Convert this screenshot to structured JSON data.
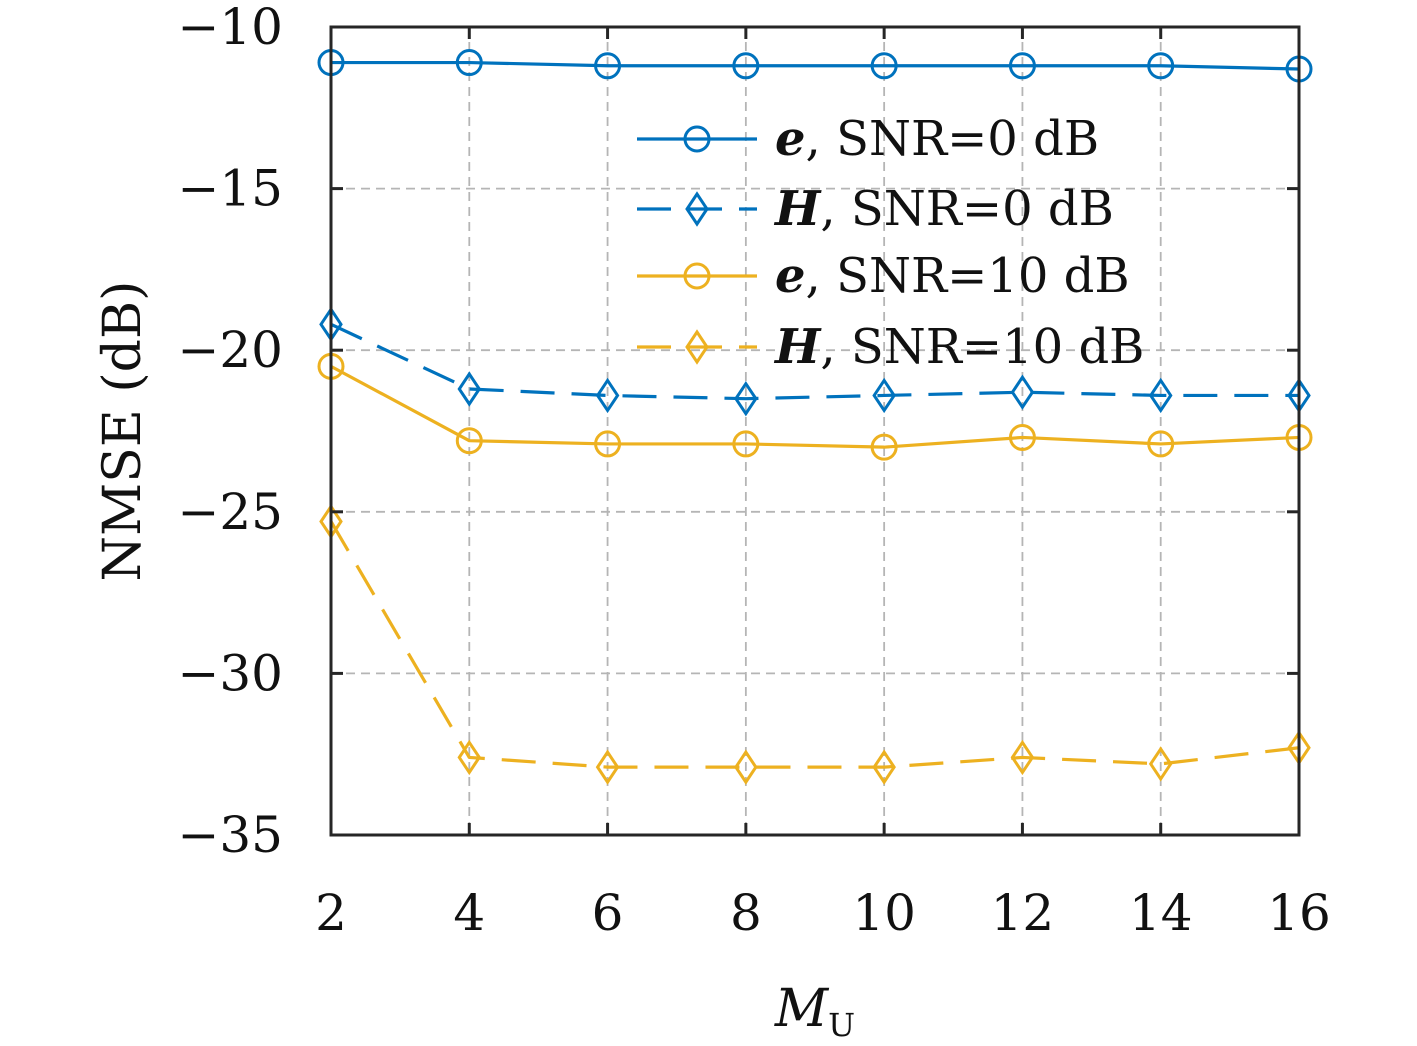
{
  "chart_data": {
    "type": "line",
    "x": [
      2,
      4,
      6,
      8,
      10,
      12,
      14,
      16
    ],
    "xticks": [
      "2",
      "4",
      "6",
      "8",
      "10",
      "12",
      "14",
      "16"
    ],
    "yticks": [
      "−10",
      "−15",
      "−20",
      "−25",
      "−30",
      "−35"
    ],
    "xlim": [
      2,
      16
    ],
    "ylim": [
      -35,
      -10
    ],
    "xlabel_main": "M",
    "xlabel_sub": "U",
    "ylabel": "NMSE (dB)",
    "grid": true,
    "legend_position": "top-right",
    "series": [
      {
        "name_symbol": "e",
        "name_rest": ", SNR=0 dB",
        "color": "#0072BD",
        "dash": "solid",
        "marker": "circle",
        "values": [
          -11.1,
          -11.1,
          -11.2,
          -11.2,
          -11.2,
          -11.2,
          -11.2,
          -11.3
        ]
      },
      {
        "name_symbol": "H",
        "name_rest": ", SNR=0 dB",
        "color": "#0072BD",
        "dash": "dashed",
        "marker": "diamond",
        "values": [
          -19.2,
          -21.2,
          -21.4,
          -21.5,
          -21.4,
          -21.3,
          -21.4,
          -21.4
        ]
      },
      {
        "name_symbol": "e",
        "name_rest": ", SNR=10 dB",
        "color": "#EDB120",
        "dash": "solid",
        "marker": "circle",
        "values": [
          -20.5,
          -22.8,
          -22.9,
          -22.9,
          -23.0,
          -22.7,
          -22.9,
          -22.7
        ]
      },
      {
        "name_symbol": "H",
        "name_rest": ", SNR=10 dB",
        "color": "#EDB120",
        "dash": "dashed",
        "marker": "diamond",
        "values": [
          -25.3,
          -32.6,
          -32.9,
          -32.9,
          -32.9,
          -32.6,
          -32.8,
          -32.3
        ]
      }
    ]
  }
}
